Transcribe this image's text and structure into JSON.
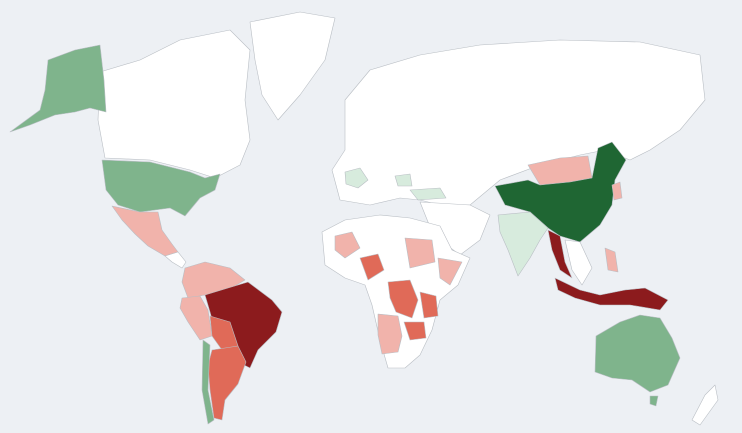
{
  "map": {
    "background": "#edf0f4",
    "border": "#b9bec4",
    "palette": [
      "#ffffff",
      "#d7ebdd",
      "#7fb48c",
      "#1f6633",
      "#f1b3ab",
      "#e06a58",
      "#8c1b1d"
    ]
  }
}
